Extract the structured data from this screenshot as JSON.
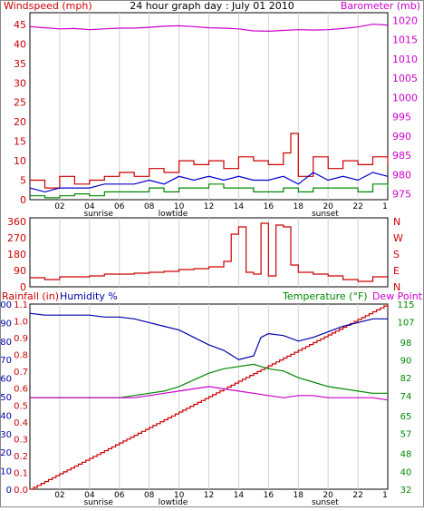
{
  "colors": {
    "wind": "#cc0000",
    "gust": "#cc0000",
    "avg_wind": "#0000cc",
    "speed2": "#008800",
    "baro": "#cc00cc",
    "dir": "#cc0000",
    "humidity": "#0000aa",
    "temp": "#008800",
    "dew": "#cc00cc",
    "rain": "#cc0000",
    "frame": "#000000",
    "grid": "#d0d0d0"
  },
  "chart_data": [
    {
      "type": "line",
      "name": "wind_baro",
      "title": "24 hour graph day : July 01 2010",
      "left_label": "Windspeed (mph)",
      "right_label": "Barometer (mb)",
      "left_ticks": [
        "0",
        "5",
        "10",
        "15",
        "20",
        "25",
        "30",
        "35",
        "40",
        "45"
      ],
      "right_ticks": [
        "975",
        "980",
        "985",
        "990",
        "995",
        "1000",
        "1005",
        "1010",
        "1015",
        "1020"
      ],
      "ylim_left": [
        0,
        48
      ],
      "ylim_right": [
        973.5,
        1022
      ],
      "x_ticks": [
        "02",
        "04",
        "06",
        "08",
        "10",
        "12",
        "14",
        "16",
        "18",
        "20",
        "22"
      ],
      "x_events": [
        "sunrise",
        "lowtide",
        "sunset"
      ],
      "event_x": [
        4.6,
        9.6,
        19.8
      ],
      "x_end_label": "1",
      "series": {
        "barometer": {
          "x": [
            0,
            1,
            2,
            3,
            4,
            5,
            6,
            7,
            8,
            9,
            10,
            11,
            12,
            13,
            14,
            15,
            16,
            17,
            18,
            19,
            20,
            21,
            22,
            23,
            24
          ],
          "y": [
            1018.4,
            1018.1,
            1017.8,
            1017.9,
            1017.6,
            1017.8,
            1018.0,
            1018.0,
            1018.2,
            1018.5,
            1018.6,
            1018.4,
            1018.1,
            1018.0,
            1017.8,
            1017.3,
            1017.2,
            1017.4,
            1017.6,
            1017.5,
            1017.6,
            1017.9,
            1018.3,
            1019.0,
            1018.8
          ]
        },
        "gust": {
          "x": [
            0,
            1,
            2,
            3,
            4,
            5,
            6,
            7,
            8,
            9,
            10,
            11,
            12,
            13,
            14,
            15,
            16,
            17,
            17.5,
            18,
            19,
            20,
            21,
            22,
            23,
            24
          ],
          "y": [
            5,
            3,
            6,
            4,
            5,
            6,
            7,
            6,
            8,
            7,
            10,
            9,
            10,
            8,
            11,
            10,
            9,
            12,
            17,
            6,
            11,
            8,
            10,
            9,
            11,
            9
          ]
        },
        "avg": {
          "x": [
            0,
            1,
            2,
            3,
            4,
            5,
            6,
            7,
            8,
            9,
            10,
            11,
            12,
            13,
            14,
            15,
            16,
            17,
            18,
            19,
            20,
            21,
            22,
            23,
            24
          ],
          "y": [
            3,
            2,
            3,
            3,
            3,
            4,
            4,
            4,
            5,
            4,
            6,
            5,
            6,
            5,
            6,
            5,
            5,
            6,
            4,
            7,
            5,
            6,
            5,
            7,
            6
          ]
        },
        "speed": {
          "x": [
            0,
            1,
            2,
            3,
            4,
            5,
            6,
            7,
            8,
            9,
            10,
            11,
            12,
            13,
            14,
            15,
            16,
            17,
            18,
            19,
            20,
            21,
            22,
            23,
            24
          ],
          "y": [
            1,
            0.5,
            1,
            1.5,
            1,
            2,
            2,
            2,
            3,
            2,
            3,
            3,
            4,
            3,
            3,
            2,
            2,
            3,
            2,
            3,
            3,
            3,
            2,
            4,
            3
          ]
        }
      }
    },
    {
      "type": "line",
      "name": "wind_direction",
      "left_ticks": [
        "0",
        "90",
        "180",
        "270",
        "360"
      ],
      "right_ticks": [
        "N",
        "E",
        "S",
        "W",
        "N"
      ],
      "ylim": [
        0,
        380
      ],
      "series": {
        "direction": {
          "x": [
            0,
            1,
            2,
            3,
            4,
            5,
            6,
            7,
            8,
            9,
            10,
            11,
            12,
            13,
            13.5,
            14,
            14.5,
            15,
            15.5,
            16,
            16.5,
            17,
            17.5,
            18,
            19,
            20,
            21,
            22,
            23,
            24
          ],
          "y": [
            50,
            40,
            55,
            55,
            60,
            70,
            70,
            75,
            80,
            85,
            95,
            100,
            110,
            140,
            290,
            330,
            80,
            70,
            350,
            60,
            340,
            330,
            120,
            80,
            70,
            60,
            40,
            30,
            55,
            55
          ]
        }
      }
    },
    {
      "type": "line",
      "name": "rain_hum_temp",
      "left_label": "Rainfall (in)",
      "left_label2": "Humidity %",
      "right_label": "Temperature (°F)",
      "right_label2": "Dew Point",
      "left_ticks": [
        "0",
        "10",
        "20",
        "30",
        "40",
        "50",
        "60",
        "70",
        "80",
        "90",
        "100"
      ],
      "rain_ticks": [
        "0.0",
        "0.1",
        "0.2",
        "0.3",
        "0.4",
        "0.5",
        "0.6",
        "0.7",
        "0.8",
        "0.9",
        "1.0",
        "1.1"
      ],
      "right_ticks": [
        "32",
        "40",
        "48",
        "57",
        "65",
        "74",
        "82",
        "90",
        "98",
        "107",
        "115"
      ],
      "ylim_left": [
        0,
        100
      ],
      "ylim_right": [
        32,
        115
      ],
      "x_ticks": [
        "02",
        "04",
        "06",
        "08",
        "10",
        "12",
        "14",
        "16",
        "18",
        "20",
        "22"
      ],
      "x_events": [
        "sunrise",
        "lowtide",
        "sunset"
      ],
      "event_x": [
        4.6,
        9.6,
        19.8
      ],
      "x_end_label": "1",
      "series": {
        "humidity": {
          "x": [
            0,
            1,
            2,
            3,
            4,
            5,
            6,
            7,
            8,
            9,
            10,
            11,
            12,
            13,
            14,
            15,
            15.5,
            16,
            17,
            18,
            19,
            20,
            21,
            22,
            23,
            24
          ],
          "y": [
            95,
            94,
            94,
            94,
            94,
            93,
            93,
            92,
            90,
            88,
            86,
            82,
            78,
            75,
            70,
            72,
            82,
            84,
            83,
            80,
            82,
            85,
            88,
            90,
            92,
            92
          ]
        },
        "temperature": {
          "x": [
            0,
            1,
            2,
            3,
            4,
            5,
            6,
            7,
            8,
            9,
            10,
            11,
            12,
            13,
            14,
            15,
            16,
            17,
            18,
            19,
            20,
            21,
            22,
            23,
            24
          ],
          "y": [
            73,
            73,
            73,
            73,
            73,
            73,
            73,
            74,
            75,
            76,
            78,
            81,
            84,
            86,
            87,
            88,
            86,
            85,
            82,
            80,
            78,
            77,
            76,
            75,
            75
          ]
        },
        "dewpoint": {
          "x": [
            0,
            1,
            2,
            3,
            4,
            5,
            6,
            7,
            8,
            9,
            10,
            11,
            12,
            13,
            14,
            15,
            16,
            17,
            18,
            19,
            20,
            21,
            22,
            23,
            24
          ],
          "y": [
            73,
            73,
            73,
            73,
            73,
            73,
            73,
            73,
            74,
            75,
            76,
            77,
            78,
            77,
            76,
            75,
            74,
            73,
            74,
            74,
            73,
            73,
            73,
            73,
            72
          ]
        },
        "rainfall_pct": {
          "x": [
            0,
            24
          ],
          "y": [
            0,
            100
          ]
        }
      }
    }
  ]
}
